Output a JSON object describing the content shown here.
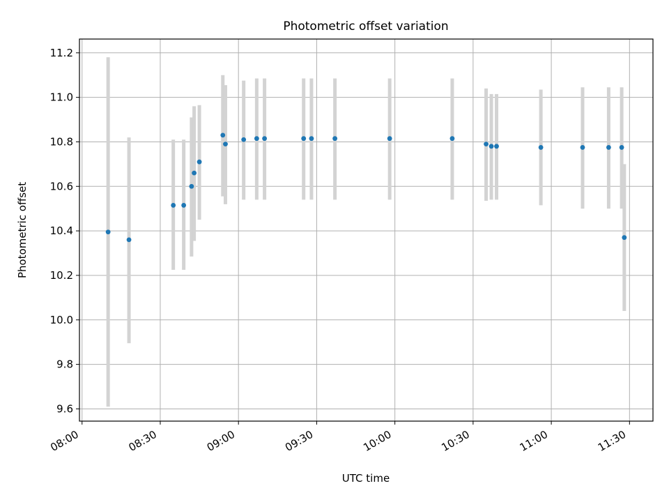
{
  "chart_data": {
    "type": "scatter",
    "title": "Photometric offset variation",
    "xlabel": "UTC time",
    "ylabel": "Photometric offset",
    "grid": true,
    "ylim": [
      9.545,
      11.262
    ],
    "xlim": [
      "07:59",
      "11:39"
    ],
    "x_ticks": [
      "08:00",
      "08:30",
      "09:00",
      "09:30",
      "10:00",
      "10:30",
      "11:00",
      "11:30"
    ],
    "y_ticks": [
      "9.6",
      "9.8",
      "10.0",
      "10.2",
      "10.4",
      "10.6",
      "10.8",
      "11.0",
      "11.2"
    ],
    "colors": {
      "point": "#1f77b4",
      "errorbar": "#d3d3d3",
      "grid": "#b0b0b0"
    },
    "series": [
      {
        "points": [
          {
            "x": "08:10",
            "y": 10.395,
            "ylo": 9.61,
            "yhi": 11.18
          },
          {
            "x": "08:18",
            "y": 10.36,
            "ylo": 9.895,
            "yhi": 10.82
          },
          {
            "x": "08:35",
            "y": 10.515,
            "ylo": 10.225,
            "yhi": 10.81
          },
          {
            "x": "08:39",
            "y": 10.515,
            "ylo": 10.225,
            "yhi": 10.81
          },
          {
            "x": "08:42",
            "y": 10.6,
            "ylo": 10.285,
            "yhi": 10.91
          },
          {
            "x": "08:43",
            "y": 10.66,
            "ylo": 10.355,
            "yhi": 10.96
          },
          {
            "x": "08:45",
            "y": 10.71,
            "ylo": 10.45,
            "yhi": 10.965
          },
          {
            "x": "08:54",
            "y": 10.83,
            "ylo": 10.555,
            "yhi": 11.1
          },
          {
            "x": "08:55",
            "y": 10.79,
            "ylo": 10.52,
            "yhi": 11.055
          },
          {
            "x": "09:02",
            "y": 10.81,
            "ylo": 10.54,
            "yhi": 11.075
          },
          {
            "x": "09:07",
            "y": 10.815,
            "ylo": 10.54,
            "yhi": 11.085
          },
          {
            "x": "09:10",
            "y": 10.815,
            "ylo": 10.54,
            "yhi": 11.085
          },
          {
            "x": "09:25",
            "y": 10.815,
            "ylo": 10.54,
            "yhi": 11.085
          },
          {
            "x": "09:28",
            "y": 10.815,
            "ylo": 10.54,
            "yhi": 11.085
          },
          {
            "x": "09:37",
            "y": 10.815,
            "ylo": 10.54,
            "yhi": 11.085
          },
          {
            "x": "09:58",
            "y": 10.815,
            "ylo": 10.54,
            "yhi": 11.085
          },
          {
            "x": "10:22",
            "y": 10.815,
            "ylo": 10.54,
            "yhi": 11.085
          },
          {
            "x": "10:35",
            "y": 10.79,
            "ylo": 10.535,
            "yhi": 11.04
          },
          {
            "x": "10:37",
            "y": 10.78,
            "ylo": 10.54,
            "yhi": 11.015
          },
          {
            "x": "10:39",
            "y": 10.78,
            "ylo": 10.54,
            "yhi": 11.015
          },
          {
            "x": "10:56",
            "y": 10.775,
            "ylo": 10.515,
            "yhi": 11.035
          },
          {
            "x": "11:12",
            "y": 10.775,
            "ylo": 10.5,
            "yhi": 11.045
          },
          {
            "x": "11:22",
            "y": 10.775,
            "ylo": 10.5,
            "yhi": 11.045
          },
          {
            "x": "11:27",
            "y": 10.775,
            "ylo": 10.5,
            "yhi": 11.045
          },
          {
            "x": "11:28",
            "y": 10.37,
            "ylo": 10.04,
            "yhi": 10.7
          }
        ]
      }
    ]
  }
}
